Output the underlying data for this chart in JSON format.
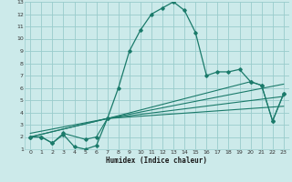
{
  "xlabel": "Humidex (Indice chaleur)",
  "bg_color": "#cceaea",
  "grid_color": "#99cccc",
  "line_color": "#1a7a6a",
  "xlim": [
    -0.5,
    23.5
  ],
  "ylim": [
    1,
    13
  ],
  "xticks": [
    0,
    1,
    2,
    3,
    4,
    5,
    6,
    7,
    8,
    9,
    10,
    11,
    12,
    13,
    14,
    15,
    16,
    17,
    18,
    19,
    20,
    21,
    22,
    23
  ],
  "yticks": [
    1,
    2,
    3,
    4,
    5,
    6,
    7,
    8,
    9,
    10,
    11,
    12,
    13
  ],
  "series1_x": [
    0,
    1,
    2,
    3,
    4,
    5,
    6,
    7,
    8,
    9,
    10,
    11,
    12,
    13,
    14,
    15,
    16,
    17,
    18,
    19,
    20,
    21,
    22,
    23
  ],
  "series1_y": [
    2.0,
    2.0,
    1.5,
    2.2,
    1.2,
    1.0,
    1.3,
    3.5,
    6.0,
    9.0,
    10.7,
    12.0,
    12.5,
    13.0,
    12.3,
    10.5,
    7.0,
    7.3,
    7.3,
    7.5,
    6.5,
    6.2,
    3.3,
    5.5
  ],
  "series2_x": [
    0,
    1,
    2,
    3,
    5,
    6,
    7,
    20,
    21,
    22,
    23
  ],
  "series2_y": [
    2.0,
    2.0,
    1.5,
    2.3,
    1.8,
    2.0,
    3.5,
    6.5,
    6.2,
    3.3,
    5.5
  ],
  "series3_x": [
    0,
    7,
    23
  ],
  "series3_y": [
    2.0,
    3.5,
    5.3
  ],
  "series4_x": [
    0,
    7,
    23
  ],
  "series4_y": [
    2.3,
    3.5,
    6.3
  ],
  "series5_x": [
    0,
    7,
    23
  ],
  "series5_y": [
    2.0,
    3.5,
    4.5
  ]
}
